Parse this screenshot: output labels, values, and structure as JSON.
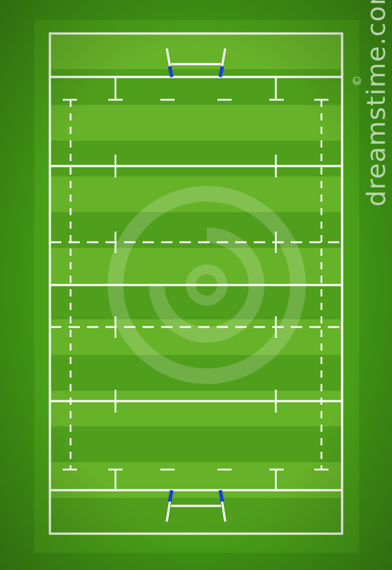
{
  "watermark": {
    "brand_text": "dreamstime.com",
    "copyright_symbol": "©",
    "logo_icon": "dreamstime-spiral-logo"
  },
  "colors": {
    "background_outer": "#3a8d12",
    "stripe_dark": "#4f9e1c",
    "stripe_light": "#66b228",
    "line": "#ffffff",
    "post_pad": "#1b3fd6"
  },
  "pitch": {
    "type": "rugby-field",
    "orientation": "vertical",
    "stripes": 14,
    "goal_posts": 2
  }
}
